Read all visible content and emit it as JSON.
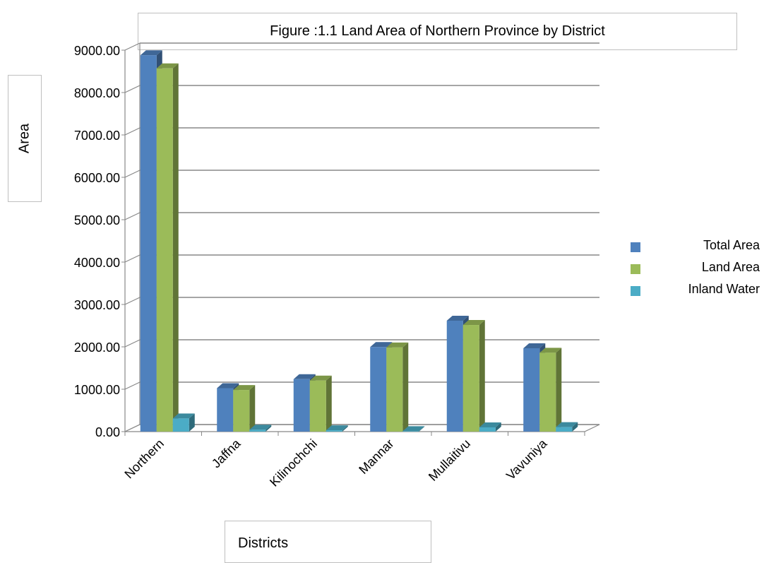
{
  "chart_data": {
    "type": "bar",
    "title": "Figure :1.1 Land Area of Northern Province by District",
    "xlabel": "Districts",
    "ylabel": "Area",
    "categories": [
      "Northern",
      "Jaffna",
      "Kilinochchi",
      "Mannar",
      "Mullaitivu",
      "Vavuniya"
    ],
    "series": [
      {
        "name": "Total Area",
        "color": "#4f81bd",
        "values": [
          8880,
          1025,
          1237,
          1996,
          2617,
          1967
        ]
      },
      {
        "name": " Land Area",
        "color": "#9bbb59",
        "values": [
          8570,
          982,
          1205,
          1985,
          2516,
          1861
        ]
      },
      {
        "name": "Inland Water",
        "color": "#4bacc6",
        "values": [
          310,
          43,
          32,
          11,
          101,
          106
        ]
      }
    ],
    "ylim": [
      0,
      9000
    ],
    "yticks": [
      "0.00",
      "1000.00",
      "2000.00",
      "3000.00",
      "4000.00",
      "5000.00",
      "6000.00",
      "7000.00",
      "8000.00",
      "9000.00"
    ],
    "grid": true,
    "legend_position": "right"
  }
}
